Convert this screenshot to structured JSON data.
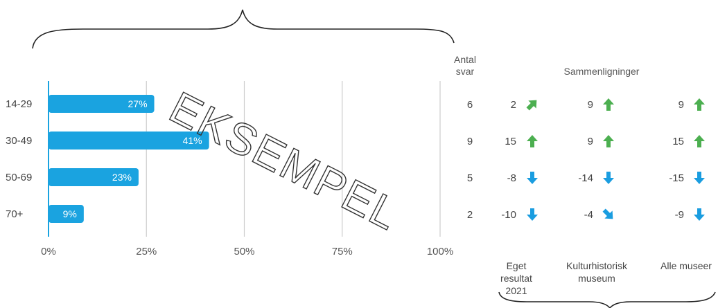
{
  "chart_data": {
    "type": "bar",
    "orientation": "horizontal",
    "categories": [
      "14-29",
      "30-49",
      "50-69",
      "70+"
    ],
    "values": [
      27,
      41,
      23,
      9
    ],
    "value_labels": [
      "27%",
      "41%",
      "23%",
      "9%"
    ],
    "xlim": [
      0,
      100
    ],
    "x_ticks": [
      "0%",
      "25%",
      "50%",
      "75%",
      "100%"
    ],
    "x_tick_values": [
      0,
      25,
      50,
      75,
      100
    ],
    "grid": "vertical",
    "bar_color": "#1aa3e0"
  },
  "table": {
    "antal_header": [
      "Antal",
      "svar"
    ],
    "comparisons_header": "Sammenligninger",
    "antal_svar": [
      "6",
      "9",
      "5",
      "2"
    ],
    "columns": [
      {
        "footer": [
          "Eget",
          "resultat",
          "2021"
        ],
        "values": [
          "2",
          "15",
          "-8",
          "-10"
        ],
        "arrows": [
          "up-right",
          "up",
          "down",
          "down"
        ]
      },
      {
        "footer": [
          "Kulturhistorisk",
          "museum"
        ],
        "values": [
          "9",
          "9",
          "-14",
          "-4"
        ],
        "arrows": [
          "up",
          "up",
          "down",
          "down-right"
        ]
      },
      {
        "footer": [
          "Alle museer"
        ],
        "values": [
          "9",
          "15",
          "-15",
          "-9"
        ],
        "arrows": [
          "up",
          "up",
          "down",
          "down"
        ]
      }
    ]
  },
  "watermark": "EKSEMPEL",
  "colors": {
    "up": "#4caf50",
    "down": "#1a9de0",
    "bar": "#1aa3e0",
    "grid": "#cccccc"
  }
}
